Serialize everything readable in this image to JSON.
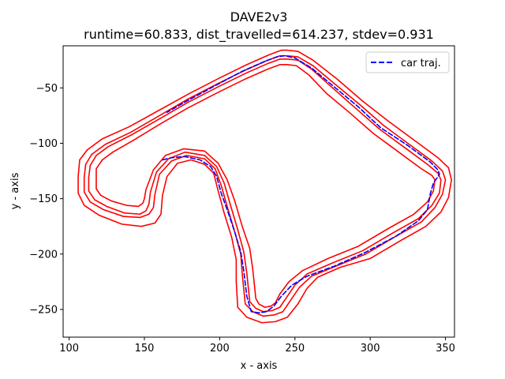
{
  "chart_data": {
    "type": "line",
    "title": "DAVE2v3",
    "subtitle": "runtime=60.833, dist_travelled=614.237, stdev=0.931",
    "xlabel": "x - axis",
    "ylabel": "y - axis",
    "xlim": [
      96,
      356
    ],
    "ylim": [
      -275,
      -12
    ],
    "x_ticks": [
      100,
      150,
      200,
      250,
      300,
      350
    ],
    "y_ticks": [
      -250,
      -200,
      -150,
      -100,
      -50
    ],
    "grid": false,
    "legend_position": "top-right",
    "colors": {
      "track": "#ff0000",
      "trajectory": "#0000ff",
      "axes": "#000000"
    },
    "series": [
      {
        "role": "track-outer",
        "style": "solid",
        "points": [
          [
            245,
            -16
          ],
          [
            241,
            -16
          ],
          [
            233,
            -20
          ],
          [
            218,
            -29
          ],
          [
            200,
            -41
          ],
          [
            180,
            -55
          ],
          [
            160,
            -70
          ],
          [
            140,
            -85
          ],
          [
            122,
            -96
          ],
          [
            112,
            -106
          ],
          [
            107,
            -115
          ],
          [
            106,
            -130
          ],
          [
            106,
            -145
          ],
          [
            110,
            -156
          ],
          [
            120,
            -165
          ],
          [
            135,
            -173
          ],
          [
            148,
            -175
          ],
          [
            157,
            -172
          ],
          [
            161,
            -164
          ],
          [
            162,
            -147
          ],
          [
            165,
            -130
          ],
          [
            172,
            -118
          ],
          [
            181,
            -115
          ],
          [
            190,
            -119
          ],
          [
            196,
            -127
          ],
          [
            199,
            -143
          ],
          [
            203,
            -163
          ],
          [
            208,
            -185
          ],
          [
            211,
            -205
          ],
          [
            211,
            -225
          ],
          [
            212,
            -248
          ],
          [
            218,
            -257
          ],
          [
            228,
            -262
          ],
          [
            237,
            -261
          ],
          [
            245,
            -257
          ],
          [
            252,
            -245
          ],
          [
            258,
            -231
          ],
          [
            265,
            -221
          ],
          [
            280,
            -212
          ],
          [
            300,
            -204
          ],
          [
            320,
            -188
          ],
          [
            337,
            -175
          ],
          [
            347,
            -162
          ],
          [
            352,
            -149
          ],
          [
            354,
            -133
          ],
          [
            352,
            -122
          ],
          [
            345,
            -113
          ],
          [
            330,
            -98
          ],
          [
            312,
            -80
          ],
          [
            295,
            -62
          ],
          [
            278,
            -42
          ],
          [
            262,
            -25
          ],
          [
            252,
            -17
          ],
          [
            245,
            -16
          ]
        ]
      },
      {
        "role": "track-lane-outer",
        "style": "solid",
        "points": [
          [
            245,
            -21
          ],
          [
            240,
            -21
          ],
          [
            232,
            -25
          ],
          [
            217,
            -34
          ],
          [
            199,
            -46
          ],
          [
            179,
            -60
          ],
          [
            160,
            -75
          ],
          [
            141,
            -90
          ],
          [
            124,
            -101
          ],
          [
            115,
            -110
          ],
          [
            111,
            -119
          ],
          [
            110,
            -131
          ],
          [
            110,
            -144
          ],
          [
            114,
            -153
          ],
          [
            123,
            -160
          ],
          [
            136,
            -166
          ],
          [
            147,
            -167
          ],
          [
            153,
            -164
          ],
          [
            156,
            -158
          ],
          [
            157,
            -146
          ],
          [
            160,
            -128
          ],
          [
            168,
            -116
          ],
          [
            178,
            -111
          ],
          [
            190,
            -114
          ],
          [
            197,
            -123
          ],
          [
            201,
            -138
          ],
          [
            205,
            -157
          ],
          [
            210,
            -180
          ],
          [
            214,
            -200
          ],
          [
            215,
            -218
          ],
          [
            217,
            -245
          ],
          [
            222,
            -252
          ],
          [
            229,
            -256
          ],
          [
            236,
            -255
          ],
          [
            242,
            -252
          ],
          [
            247,
            -242
          ],
          [
            253,
            -230
          ],
          [
            261,
            -220
          ],
          [
            277,
            -211
          ],
          [
            297,
            -200
          ],
          [
            317,
            -184
          ],
          [
            334,
            -171
          ],
          [
            343,
            -158
          ],
          [
            348,
            -146
          ],
          [
            350,
            -133
          ],
          [
            348,
            -125
          ],
          [
            341,
            -116
          ],
          [
            326,
            -101
          ],
          [
            309,
            -84
          ],
          [
            293,
            -65
          ],
          [
            277,
            -47
          ],
          [
            262,
            -30
          ],
          [
            252,
            -22
          ],
          [
            245,
            -21
          ]
        ]
      },
      {
        "role": "track-lane-inner",
        "style": "solid",
        "points": [
          [
            245,
            -24
          ],
          [
            240,
            -24
          ],
          [
            232,
            -28
          ],
          [
            217,
            -37
          ],
          [
            199,
            -49
          ],
          [
            179,
            -63
          ],
          [
            160,
            -78
          ],
          [
            142,
            -92
          ],
          [
            126,
            -103
          ],
          [
            118,
            -111
          ],
          [
            114,
            -120
          ],
          [
            113,
            -131
          ],
          [
            113,
            -143
          ],
          [
            117,
            -151
          ],
          [
            125,
            -157
          ],
          [
            137,
            -163
          ],
          [
            147,
            -164
          ],
          [
            151,
            -161
          ],
          [
            153,
            -155
          ],
          [
            154,
            -144
          ],
          [
            158,
            -126
          ],
          [
            166,
            -114
          ],
          [
            177,
            -108
          ],
          [
            190,
            -111
          ],
          [
            198,
            -121
          ],
          [
            203,
            -136
          ],
          [
            207,
            -155
          ],
          [
            212,
            -178
          ],
          [
            216,
            -198
          ],
          [
            218,
            -217
          ],
          [
            220,
            -243
          ],
          [
            224,
            -249
          ],
          [
            229,
            -252
          ],
          [
            235,
            -251
          ],
          [
            240,
            -248
          ],
          [
            244,
            -240
          ],
          [
            250,
            -228
          ],
          [
            258,
            -218
          ],
          [
            275,
            -208
          ],
          [
            295,
            -197
          ],
          [
            315,
            -181
          ],
          [
            332,
            -168
          ],
          [
            341,
            -156
          ],
          [
            346,
            -145
          ],
          [
            347,
            -133
          ],
          [
            345,
            -127
          ],
          [
            338,
            -119
          ],
          [
            323,
            -104
          ],
          [
            306,
            -87
          ],
          [
            290,
            -68
          ],
          [
            275,
            -50
          ],
          [
            261,
            -33
          ],
          [
            252,
            -25
          ],
          [
            245,
            -24
          ]
        ]
      },
      {
        "role": "track-inner",
        "style": "solid",
        "points": [
          [
            245,
            -29
          ],
          [
            240,
            -29
          ],
          [
            232,
            -33
          ],
          [
            217,
            -42
          ],
          [
            199,
            -54
          ],
          [
            179,
            -68
          ],
          [
            160,
            -83
          ],
          [
            143,
            -97
          ],
          [
            129,
            -108
          ],
          [
            122,
            -115
          ],
          [
            118,
            -123
          ],
          [
            118,
            -132
          ],
          [
            118,
            -141
          ],
          [
            121,
            -147
          ],
          [
            128,
            -152
          ],
          [
            138,
            -156
          ],
          [
            146,
            -157
          ],
          [
            149,
            -154
          ],
          [
            150,
            -150
          ],
          [
            151,
            -142
          ],
          [
            156,
            -124
          ],
          [
            164,
            -111
          ],
          [
            176,
            -105
          ],
          [
            190,
            -107
          ],
          [
            199,
            -118
          ],
          [
            205,
            -133
          ],
          [
            210,
            -152
          ],
          [
            215,
            -175
          ],
          [
            220,
            -195
          ],
          [
            222,
            -214
          ],
          [
            224,
            -240
          ],
          [
            226,
            -245
          ],
          [
            230,
            -248
          ],
          [
            234,
            -247
          ],
          [
            237,
            -244
          ],
          [
            240,
            -236
          ],
          [
            246,
            -225
          ],
          [
            255,
            -215
          ],
          [
            272,
            -204
          ],
          [
            292,
            -193
          ],
          [
            312,
            -177
          ],
          [
            329,
            -164
          ],
          [
            338,
            -153
          ],
          [
            342,
            -143
          ],
          [
            343,
            -133
          ],
          [
            341,
            -129
          ],
          [
            334,
            -123
          ],
          [
            319,
            -108
          ],
          [
            302,
            -91
          ],
          [
            286,
            -72
          ],
          [
            271,
            -55
          ],
          [
            259,
            -38
          ],
          [
            251,
            -30
          ],
          [
            245,
            -29
          ]
        ]
      },
      {
        "role": "car-trajectory",
        "name": "car traj.",
        "style": "dashed",
        "points": [
          [
            162,
            -115
          ],
          [
            168,
            -113
          ],
          [
            177,
            -112
          ],
          [
            187,
            -115
          ],
          [
            194,
            -121
          ],
          [
            198,
            -130
          ],
          [
            201,
            -145
          ],
          [
            205,
            -160
          ],
          [
            210,
            -180
          ],
          [
            214,
            -198
          ],
          [
            216,
            -215
          ],
          [
            218,
            -238
          ],
          [
            221,
            -252
          ],
          [
            226,
            -253
          ],
          [
            231,
            -252
          ],
          [
            236,
            -247
          ],
          [
            241,
            -238
          ],
          [
            248,
            -228
          ],
          [
            258,
            -220
          ],
          [
            276,
            -211
          ],
          [
            296,
            -199
          ],
          [
            317,
            -184
          ],
          [
            332,
            -170
          ],
          [
            338,
            -160
          ],
          [
            340,
            -145
          ],
          [
            342,
            -136
          ],
          [
            346,
            -128
          ],
          [
            345,
            -124
          ],
          [
            340,
            -117
          ],
          [
            325,
            -102
          ],
          [
            307,
            -86
          ],
          [
            292,
            -67
          ],
          [
            276,
            -49
          ],
          [
            261,
            -32
          ],
          [
            250,
            -23
          ],
          [
            243,
            -21
          ],
          [
            238,
            -22
          ],
          [
            230,
            -26
          ],
          [
            215,
            -35
          ],
          [
            197,
            -48
          ],
          [
            178,
            -62
          ],
          [
            165,
            -72
          ]
        ]
      }
    ]
  }
}
